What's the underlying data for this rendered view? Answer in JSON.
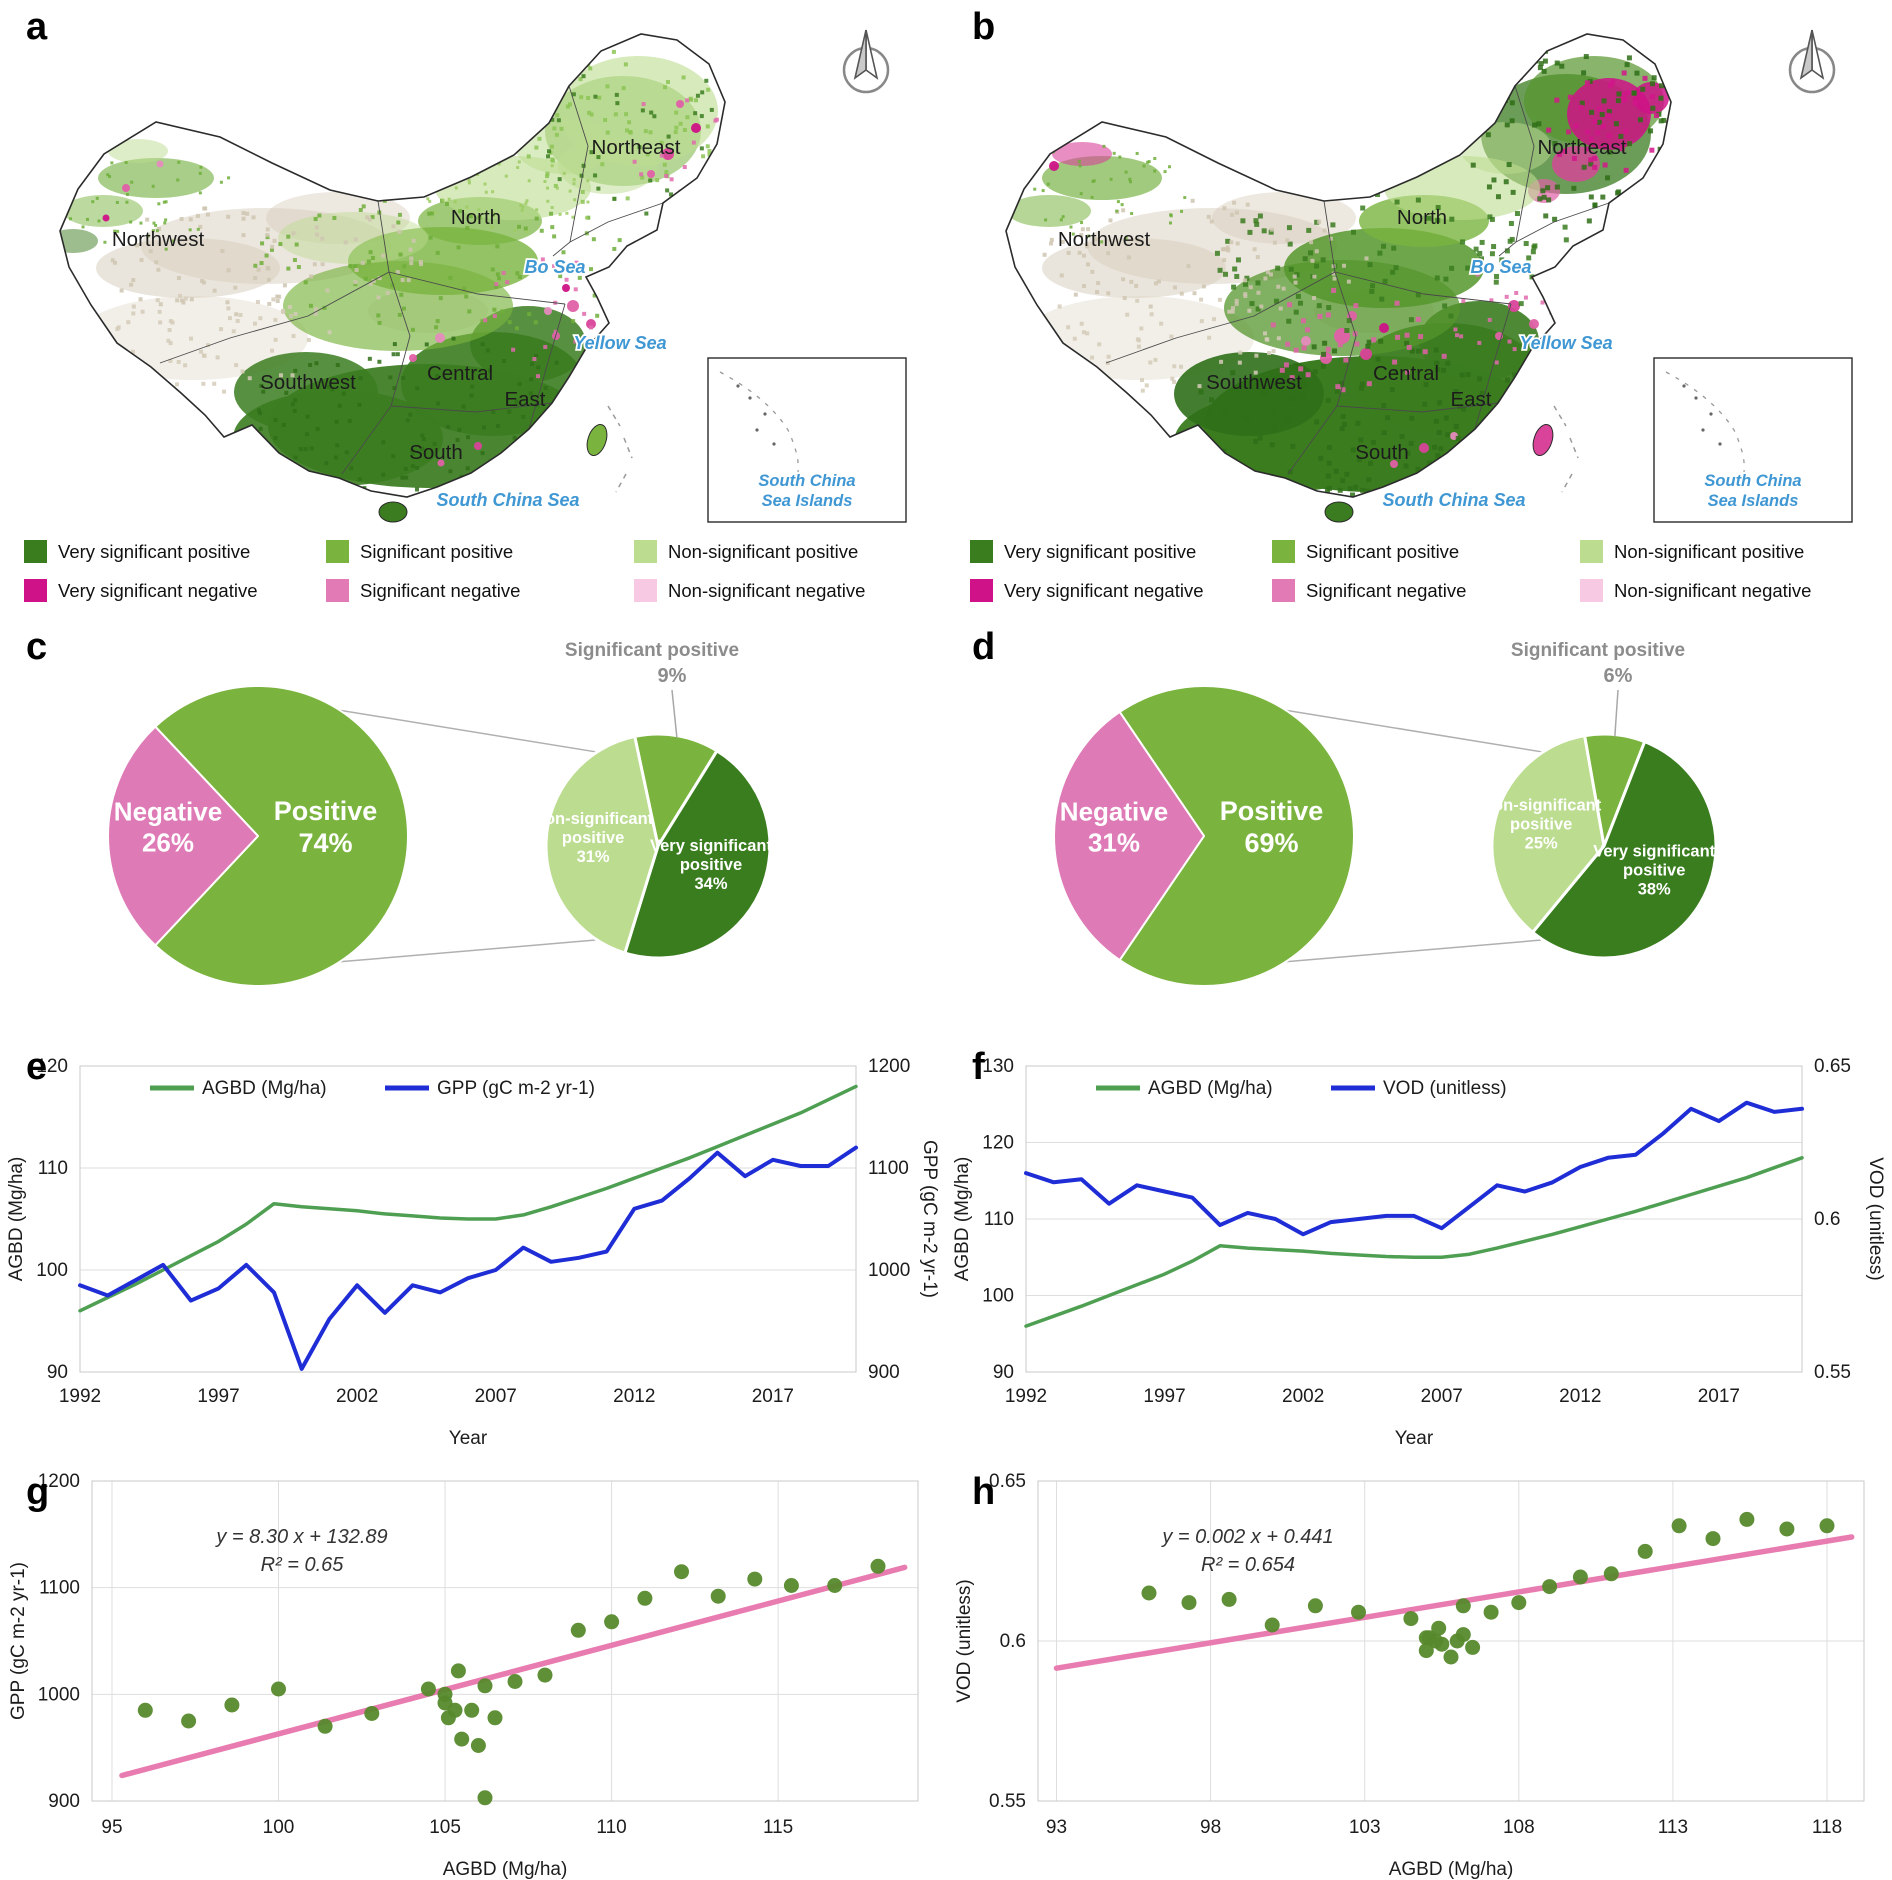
{
  "panels": {
    "a": "a",
    "b": "b",
    "c": "c",
    "d": "d",
    "e": "e",
    "f": "f",
    "g": "g",
    "h": "h"
  },
  "map": {
    "labels": {
      "northwest": "Northwest",
      "north": "North",
      "northeast": "Northeast",
      "central": "Central",
      "east": "East",
      "southwest": "Southwest",
      "south": "South"
    },
    "seas": {
      "bo": "Bo Sea",
      "yellow": "Yellow Sea",
      "south_china": "South China Sea",
      "inset_line1": "South China",
      "inset_line2": "Sea Islands"
    }
  },
  "legend": {
    "items": [
      {
        "label": "Very significant positive",
        "color": "#3a7d1f"
      },
      {
        "label": "Significant positive",
        "color": "#7ab43e"
      },
      {
        "label": "Non-significant positive",
        "color": "#bcdc90"
      },
      {
        "label": "Very significant negative",
        "color": "#cf1287"
      },
      {
        "label": "Significant negative",
        "color": "#e27ab5"
      },
      {
        "label": "Non-significant negative",
        "color": "#f7c9e2"
      }
    ]
  },
  "chart_data": {
    "c": {
      "type": "pie",
      "main": {
        "slices": [
          {
            "label": "Negative",
            "pct": 26,
            "color": "#de7ab5"
          },
          {
            "label": "Positive",
            "pct": 74,
            "color": "#7ab43e"
          }
        ]
      },
      "breakdown": {
        "start": 348,
        "slices": [
          {
            "label": "Significant positive",
            "pct": 9,
            "color": "#7ab43e"
          },
          {
            "label": "Very significant positive",
            "pct": 34,
            "color": "#3a7d1f"
          },
          {
            "label": "Non-significant positive",
            "pct": 31,
            "color": "#bcdc90"
          }
        ]
      }
    },
    "d": {
      "type": "pie",
      "main": {
        "slices": [
          {
            "label": "Negative",
            "pct": 31,
            "color": "#de7ab5"
          },
          {
            "label": "Positive",
            "pct": 69,
            "color": "#7ab43e"
          }
        ]
      },
      "breakdown": {
        "start": 350,
        "slices": [
          {
            "label": "Significant positive",
            "pct": 6,
            "color": "#7ab43e"
          },
          {
            "label": "Very significant positive",
            "pct": 38,
            "color": "#3a7d1f"
          },
          {
            "label": "Non-significant positive",
            "pct": 25,
            "color": "#bcdc90"
          }
        ]
      }
    },
    "e": {
      "type": "line",
      "xlabel": "Year",
      "x": [
        1992,
        1993,
        1994,
        1995,
        1996,
        1997,
        1998,
        1999,
        2000,
        2001,
        2002,
        2003,
        2004,
        2005,
        2006,
        2007,
        2008,
        2009,
        2010,
        2011,
        2012,
        2013,
        2014,
        2015,
        2016,
        2017,
        2018,
        2019,
        2020
      ],
      "xticks": [
        1992,
        1997,
        2002,
        2007,
        2012,
        2017
      ],
      "left_axis": {
        "label": "AGBD (Mg/ha)",
        "min": 90,
        "max": 120,
        "ticks": [
          90,
          100,
          110,
          120
        ]
      },
      "right_axis": {
        "label": "GPP (gC m-2 yr-1)",
        "min": 900,
        "max": 1200,
        "ticks": [
          900,
          1000,
          1100,
          1200
        ]
      },
      "series": [
        {
          "name": "AGBD (Mg/ha)",
          "axis": "left",
          "color": "#4f9f53",
          "values": [
            96.0,
            97.3,
            98.6,
            100.0,
            101.4,
            102.8,
            104.5,
            106.5,
            106.2,
            106.0,
            105.8,
            105.5,
            105.3,
            105.1,
            105.0,
            105.0,
            105.4,
            106.2,
            107.1,
            108.0,
            109.0,
            110.0,
            111.0,
            112.1,
            113.2,
            114.3,
            115.4,
            116.7,
            118.0
          ]
        },
        {
          "name": "GPP (gC m-2 yr-1)",
          "axis": "right",
          "color": "#1f2dd6",
          "values": [
            985,
            975,
            990,
            1005,
            970,
            982,
            1005,
            978,
            903,
            952,
            985,
            958,
            985,
            978,
            992,
            1000,
            1022,
            1008,
            1012,
            1018,
            1060,
            1068,
            1090,
            1115,
            1092,
            1108,
            1102,
            1102,
            1120
          ]
        }
      ]
    },
    "f": {
      "type": "line",
      "xlabel": "Year",
      "x": [
        1992,
        1993,
        1994,
        1995,
        1996,
        1997,
        1998,
        1999,
        2000,
        2001,
        2002,
        2003,
        2004,
        2005,
        2006,
        2007,
        2008,
        2009,
        2010,
        2011,
        2012,
        2013,
        2014,
        2015,
        2016,
        2017,
        2018,
        2019,
        2020
      ],
      "xticks": [
        1992,
        1997,
        2002,
        2007,
        2012,
        2017
      ],
      "left_axis": {
        "label": "AGBD (Mg/ha)",
        "min": 90,
        "max": 130,
        "ticks": [
          90,
          100,
          110,
          120,
          130
        ]
      },
      "right_axis": {
        "label": "VOD (unitless)",
        "min": 0.55,
        "max": 0.65,
        "ticks": [
          0.55,
          0.6,
          0.65
        ]
      },
      "series": [
        {
          "name": "AGBD (Mg/ha)",
          "axis": "left",
          "color": "#4f9f53",
          "values": [
            96.0,
            97.3,
            98.6,
            100.0,
            101.4,
            102.8,
            104.5,
            106.5,
            106.2,
            106.0,
            105.8,
            105.5,
            105.3,
            105.1,
            105.0,
            105.0,
            105.4,
            106.2,
            107.1,
            108.0,
            109.0,
            110.0,
            111.0,
            112.1,
            113.2,
            114.3,
            115.4,
            116.7,
            118.0
          ]
        },
        {
          "name": "VOD (unitless)",
          "axis": "right",
          "color": "#1f2dd6",
          "values": [
            0.615,
            0.612,
            0.613,
            0.605,
            0.611,
            0.609,
            0.607,
            0.598,
            0.602,
            0.6,
            0.595,
            0.599,
            0.6,
            0.601,
            0.601,
            0.597,
            0.604,
            0.611,
            0.609,
            0.612,
            0.617,
            0.62,
            0.621,
            0.628,
            0.636,
            0.632,
            0.638,
            0.635,
            0.636
          ]
        }
      ]
    },
    "g": {
      "type": "scatter",
      "xlabel": "AGBD (Mg/ha)",
      "ylabel": "GPP (gC m-2 yr-1)",
      "equation": "y = 8.30 x + 132.89",
      "r2": "R² = 0.65",
      "xlim": [
        94.4,
        119.2
      ],
      "ylim": [
        900,
        1200
      ],
      "xticks": [
        95,
        100,
        105,
        110,
        115
      ],
      "yticks": [
        900,
        1000,
        1100,
        1200
      ],
      "point_color": "#56892c",
      "trend_color": "#e87cb0",
      "trend": {
        "x1": 95.3,
        "y1": 923.9,
        "x2": 118.8,
        "y2": 1119.0
      },
      "points": [
        [
          96.0,
          985
        ],
        [
          97.3,
          975
        ],
        [
          98.6,
          990
        ],
        [
          100.0,
          1005
        ],
        [
          101.4,
          970
        ],
        [
          102.8,
          982
        ],
        [
          104.5,
          1005
        ],
        [
          106.5,
          978
        ],
        [
          106.2,
          903
        ],
        [
          106.0,
          952
        ],
        [
          105.8,
          985
        ],
        [
          105.5,
          958
        ],
        [
          105.3,
          985
        ],
        [
          105.1,
          978
        ],
        [
          105.0,
          992
        ],
        [
          105.0,
          1000
        ],
        [
          105.4,
          1022
        ],
        [
          106.2,
          1008
        ],
        [
          107.1,
          1012
        ],
        [
          108.0,
          1018
        ],
        [
          109.0,
          1060
        ],
        [
          110.0,
          1068
        ],
        [
          111.0,
          1090
        ],
        [
          112.1,
          1115
        ],
        [
          113.2,
          1092
        ],
        [
          114.3,
          1108
        ],
        [
          115.4,
          1102
        ],
        [
          116.7,
          1102
        ],
        [
          118.0,
          1120
        ]
      ]
    },
    "h": {
      "type": "scatter",
      "xlabel": "AGBD (Mg/ha)",
      "ylabel": "VOD (unitless)",
      "equation": "y = 0.002 x + 0.441",
      "r2": "R² = 0.654",
      "xlim": [
        92.4,
        119.2
      ],
      "ylim": [
        0.55,
        0.65
      ],
      "xticks": [
        93,
        98,
        103,
        108,
        113,
        118
      ],
      "yticks": [
        0.55,
        0.6,
        0.65
      ],
      "point_color": "#56892c",
      "trend_color": "#e87cb0",
      "trend": {
        "x1": 93.0,
        "y1": 0.5915,
        "x2": 118.8,
        "y2": 0.6325
      },
      "points": [
        [
          96.0,
          0.615
        ],
        [
          97.3,
          0.612
        ],
        [
          98.6,
          0.613
        ],
        [
          100.0,
          0.605
        ],
        [
          101.4,
          0.611
        ],
        [
          102.8,
          0.609
        ],
        [
          104.5,
          0.607
        ],
        [
          106.5,
          0.598
        ],
        [
          106.2,
          0.602
        ],
        [
          106.0,
          0.6
        ],
        [
          105.8,
          0.595
        ],
        [
          105.5,
          0.599
        ],
        [
          105.3,
          0.6
        ],
        [
          105.1,
          0.601
        ],
        [
          105.0,
          0.601
        ],
        [
          105.0,
          0.597
        ],
        [
          105.4,
          0.604
        ],
        [
          106.2,
          0.611
        ],
        [
          107.1,
          0.609
        ],
        [
          108.0,
          0.612
        ],
        [
          109.0,
          0.617
        ],
        [
          110.0,
          0.62
        ],
        [
          111.0,
          0.621
        ],
        [
          112.1,
          0.628
        ],
        [
          113.2,
          0.636
        ],
        [
          114.3,
          0.632
        ],
        [
          115.4,
          0.638
        ],
        [
          116.7,
          0.635
        ],
        [
          118.0,
          0.636
        ]
      ]
    }
  }
}
